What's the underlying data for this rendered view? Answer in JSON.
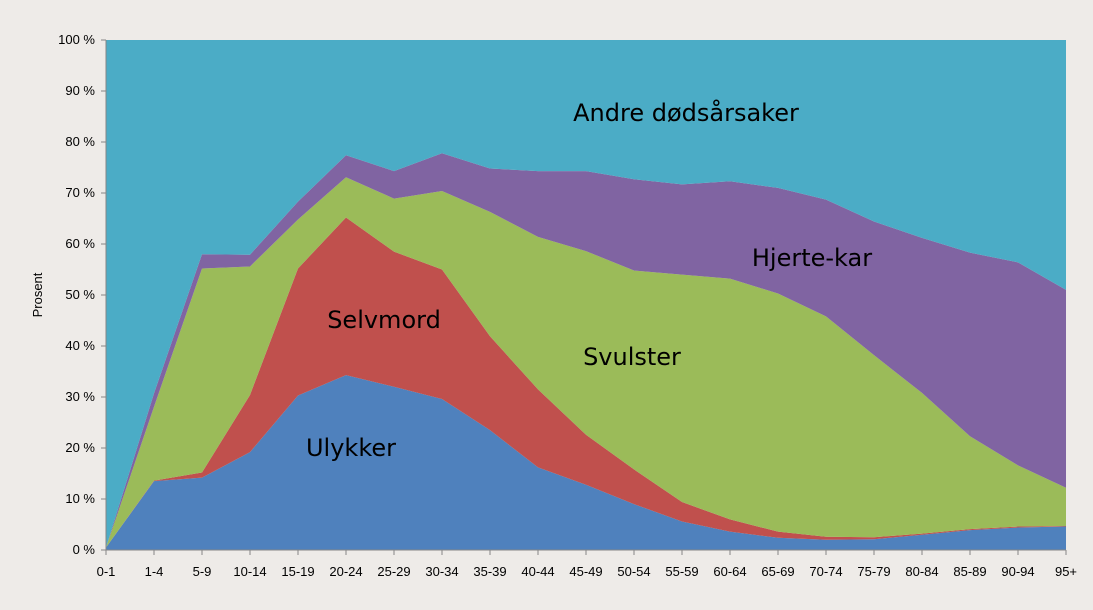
{
  "chart_data": {
    "type": "area",
    "stacked": true,
    "percent": true,
    "ylabel": "Prosent",
    "ylim": [
      0,
      100
    ],
    "ytick_labels": [
      "0 %",
      "10 %",
      "20 %",
      "30 %",
      "40 %",
      "50 %",
      "60 %",
      "70 %",
      "80 %",
      "90 %",
      "100 %"
    ],
    "categories": [
      "0-1",
      "1-4",
      "5-9",
      "10-14",
      "15-19",
      "20-24",
      "25-29",
      "30-34",
      "35-39",
      "40-44",
      "45-49",
      "50-54",
      "55-59",
      "60-64",
      "65-69",
      "70-74",
      "75-79",
      "80-84",
      "85-89",
      "90-94",
      "95+"
    ],
    "series": [
      {
        "name": "Ulykker",
        "color": "#4f81bd",
        "values": [
          0.5,
          13.5,
          14.2,
          19.2,
          30.3,
          34.3,
          32.0,
          29.6,
          23.5,
          16.2,
          12.8,
          9.0,
          5.6,
          3.6,
          2.4,
          2.0,
          2.1,
          3.0,
          3.9,
          4.4,
          4.6
        ]
      },
      {
        "name": "Selvmord",
        "color": "#c0504d",
        "values": [
          0.0,
          0.1,
          1.0,
          11.2,
          24.9,
          30.9,
          26.5,
          25.4,
          18.4,
          15.3,
          9.8,
          6.8,
          3.8,
          2.4,
          1.2,
          0.6,
          0.4,
          0.2,
          0.2,
          0.2,
          0.1
        ]
      },
      {
        "name": "Svulster",
        "color": "#9bbb59",
        "values": [
          0.0,
          14.5,
          40.0,
          25.2,
          9.6,
          7.9,
          10.4,
          15.4,
          24.4,
          29.9,
          36.0,
          39.0,
          44.6,
          47.2,
          46.7,
          43.2,
          35.7,
          27.6,
          18.2,
          12.0,
          7.5
        ]
      },
      {
        "name": "Hjerte-kar",
        "color": "#8064a2",
        "values": [
          0.0,
          2.6,
          2.8,
          2.3,
          3.5,
          4.3,
          5.4,
          7.4,
          8.5,
          12.9,
          15.7,
          17.9,
          17.7,
          19.1,
          20.7,
          22.9,
          26.2,
          30.4,
          36.0,
          39.8,
          38.8
        ]
      },
      {
        "name": "Andre dødsårsaker",
        "color": "#4bacc6",
        "values": [
          99.5,
          69.3,
          42.0,
          42.1,
          31.7,
          22.6,
          25.7,
          22.2,
          25.2,
          25.7,
          25.7,
          27.3,
          28.3,
          27.7,
          29.0,
          31.3,
          35.6,
          38.8,
          41.7,
          43.6,
          49.0
        ]
      }
    ],
    "grid": false,
    "legend": "none"
  }
}
